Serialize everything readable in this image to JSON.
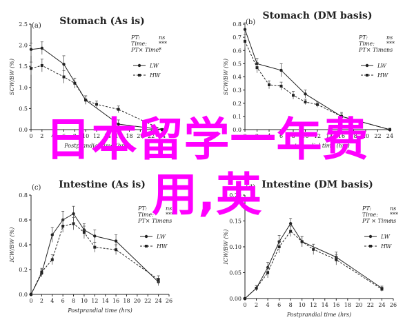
{
  "chart_data": [
    {
      "type": "line",
      "panel_label": "(a)",
      "title": "Stomach (As is)",
      "xlabel": "Postprandial time (hrs)",
      "ylabel": "SCW/BW (%)",
      "ylim": [
        0,
        2.5
      ],
      "yticks": [
        "0.0",
        "0.5",
        "1.0",
        "1.5",
        "2.0",
        "2.5"
      ],
      "xlim": [
        0,
        24
      ],
      "xticks": [
        "0",
        "2",
        "4",
        "6",
        "8",
        "10",
        "12",
        "14",
        "16",
        "18",
        "20",
        "22",
        "24"
      ],
      "stats": [
        [
          "PT:",
          "ns"
        ],
        [
          "Time:",
          "***"
        ],
        [
          "PT× Time:",
          "*"
        ]
      ],
      "series": [
        {
          "name": "LW",
          "style": "solid",
          "marker": "circle",
          "x": [
            0,
            2,
            6,
            10,
            16,
            24
          ],
          "y": [
            1.9,
            1.93,
            1.55,
            0.7,
            0.13,
            0.0
          ],
          "err": [
            0.15,
            0.15,
            0.2,
            0.1,
            0.1,
            0.02
          ]
        },
        {
          "name": "HW",
          "style": "dashed",
          "marker": "square",
          "x": [
            0,
            2,
            6,
            8,
            10,
            12,
            16,
            24
          ],
          "y": [
            1.45,
            1.52,
            1.25,
            1.1,
            0.7,
            0.6,
            0.48,
            0.0
          ],
          "err": [
            0.15,
            0.15,
            0.15,
            0.12,
            0.1,
            0.08,
            0.08,
            0.02
          ]
        }
      ]
    },
    {
      "type": "line",
      "panel_label": "(b)",
      "title": "Stomach (DM basis)",
      "xlabel": "Postprandial time (hrs)",
      "ylabel": "SCW/BW (%)",
      "ylim": [
        0,
        0.8
      ],
      "yticks": [
        "0.0",
        "0.1",
        "0.2",
        "0.3",
        "0.4",
        "0.5",
        "0.6",
        "0.7",
        "0.8"
      ],
      "xlim": [
        0,
        24
      ],
      "xticks": [
        "0",
        "2",
        "4",
        "6",
        "8",
        "10",
        "12",
        "14",
        "16",
        "18",
        "20",
        "22",
        "24"
      ],
      "stats": [
        [
          "PT:",
          "ns"
        ],
        [
          "Time:",
          "***"
        ],
        [
          "PT× Time:",
          "ns"
        ]
      ],
      "series": [
        {
          "name": "LW",
          "style": "solid",
          "marker": "circle",
          "x": [
            0,
            2,
            6,
            10,
            16,
            24
          ],
          "y": [
            0.76,
            0.5,
            0.45,
            0.27,
            0.1,
            0.0
          ],
          "err": [
            0.05,
            0.04,
            0.05,
            0.03,
            0.03,
            0.01
          ]
        },
        {
          "name": "HW",
          "style": "dashed",
          "marker": "square",
          "x": [
            0,
            2,
            4,
            6,
            8,
            10,
            12,
            16,
            24
          ],
          "y": [
            0.67,
            0.47,
            0.34,
            0.33,
            0.26,
            0.21,
            0.19,
            0.1,
            0.0
          ],
          "err": [
            0.05,
            0.04,
            0.03,
            0.03,
            0.03,
            0.02,
            0.02,
            0.02,
            0.01
          ]
        }
      ]
    },
    {
      "type": "line",
      "panel_label": "(c)",
      "title": "Intestine (As is)",
      "xlabel": "Postprandial time (hrs)",
      "ylabel": "ICW/BW (%)",
      "ylim": [
        0,
        0.8
      ],
      "yticks": [
        "0.0",
        "0.2",
        "0.4",
        "0.6",
        "0.8"
      ],
      "xlim": [
        0,
        26
      ],
      "xticks": [
        "0",
        "2",
        "4",
        "6",
        "8",
        "10",
        "12",
        "14",
        "16",
        "18",
        "20",
        "22",
        "24",
        "26"
      ],
      "stats": [
        [
          "PT:",
          "ns"
        ],
        [
          "Time:",
          "***"
        ],
        [
          "PT× Time:",
          "ns"
        ]
      ],
      "series": [
        {
          "name": "LW",
          "style": "solid",
          "marker": "circle",
          "x": [
            0,
            2,
            4,
            6,
            8,
            10,
            12,
            16,
            24
          ],
          "y": [
            0.0,
            0.17,
            0.48,
            0.6,
            0.65,
            0.52,
            0.47,
            0.43,
            0.1
          ],
          "err": [
            0.01,
            0.03,
            0.06,
            0.07,
            0.06,
            0.05,
            0.05,
            0.05,
            0.03
          ]
        },
        {
          "name": "HW",
          "style": "dashed",
          "marker": "square",
          "x": [
            0,
            2,
            4,
            6,
            8,
            10,
            12,
            16,
            24
          ],
          "y": [
            0.0,
            0.18,
            0.28,
            0.55,
            0.57,
            0.5,
            0.38,
            0.36,
            0.12
          ],
          "err": [
            0.01,
            0.03,
            0.04,
            0.05,
            0.05,
            0.05,
            0.04,
            0.04,
            0.03
          ]
        }
      ]
    },
    {
      "type": "line",
      "panel_label": "(d)",
      "title": "Intestine (DM basis)",
      "xlabel": "Postprandial time (hrs)",
      "ylabel": "ICW/BW (%)",
      "ylim": [
        0,
        0.2
      ],
      "yticks": [
        "0.00",
        "0.05",
        "0.10",
        "0.15",
        "0.20"
      ],
      "xlim": [
        0,
        26
      ],
      "xticks": [
        "0",
        "2",
        "4",
        "6",
        "8",
        "10",
        "12",
        "14",
        "16",
        "18",
        "20",
        "22",
        "24",
        "26"
      ],
      "stats": [
        [
          "PT:",
          "ns"
        ],
        [
          "Time:",
          "***"
        ],
        [
          "PT × Time:",
          "ns"
        ]
      ],
      "series": [
        {
          "name": "LW",
          "style": "solid",
          "marker": "circle",
          "x": [
            0,
            2,
            4,
            6,
            8,
            10,
            16,
            24
          ],
          "y": [
            0.0,
            0.02,
            0.06,
            0.11,
            0.145,
            0.11,
            0.08,
            0.02
          ],
          "err": [
            0.002,
            0.005,
            0.01,
            0.012,
            0.01,
            0.01,
            0.01,
            0.004
          ]
        },
        {
          "name": "HW",
          "style": "dashed",
          "marker": "square",
          "x": [
            0,
            2,
            4,
            6,
            8,
            10,
            12,
            16,
            24
          ],
          "y": [
            0.0,
            0.02,
            0.05,
            0.1,
            0.13,
            0.11,
            0.095,
            0.075,
            0.018
          ],
          "err": [
            0.002,
            0.005,
            0.01,
            0.012,
            0.01,
            0.01,
            0.01,
            0.01,
            0.004
          ]
        }
      ]
    }
  ],
  "watermark": {
    "line1": "日本留学一年费",
    "line2": "用,英"
  }
}
